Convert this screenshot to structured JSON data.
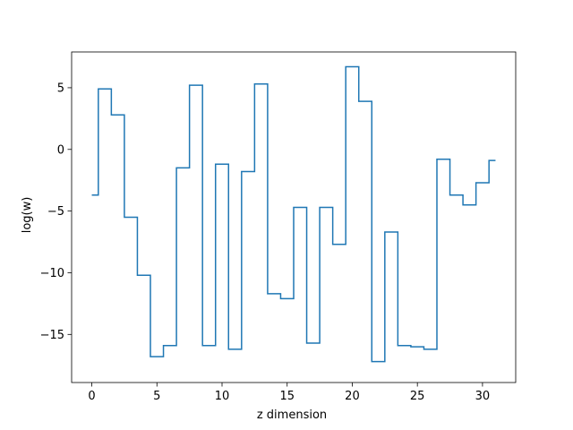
{
  "chart_data": {
    "type": "line",
    "drawstyle": "steps-mid",
    "title": "",
    "xlabel": "z dimension",
    "ylabel": "log(w)",
    "xlim": [
      -1.55,
      32.55
    ],
    "ylim": [
      -18.9,
      7.9
    ],
    "xticks": [
      0,
      5,
      10,
      15,
      20,
      25,
      30
    ],
    "yticks": [
      -15,
      -10,
      -5,
      0,
      5
    ],
    "grid": false,
    "legend": "none",
    "series": [
      {
        "color": "#1f77b4",
        "x": [
          0,
          1,
          2,
          3,
          4,
          5,
          6,
          7,
          8,
          9,
          10,
          11,
          12,
          13,
          14,
          15,
          16,
          17,
          18,
          19,
          20,
          21,
          22,
          23,
          24,
          25,
          26,
          27,
          28,
          29,
          30,
          31
        ],
        "y": [
          -3.7,
          4.9,
          2.8,
          -5.5,
          -10.2,
          -16.8,
          -15.9,
          -1.5,
          5.2,
          -15.9,
          -1.2,
          -16.2,
          -1.8,
          5.3,
          -11.7,
          -12.1,
          -4.7,
          -15.7,
          -4.7,
          -7.7,
          6.7,
          3.9,
          -17.2,
          -6.7,
          -15.9,
          -16.0,
          -16.2,
          -0.8,
          -3.7,
          -4.5,
          -2.7,
          -0.9
        ]
      }
    ]
  }
}
